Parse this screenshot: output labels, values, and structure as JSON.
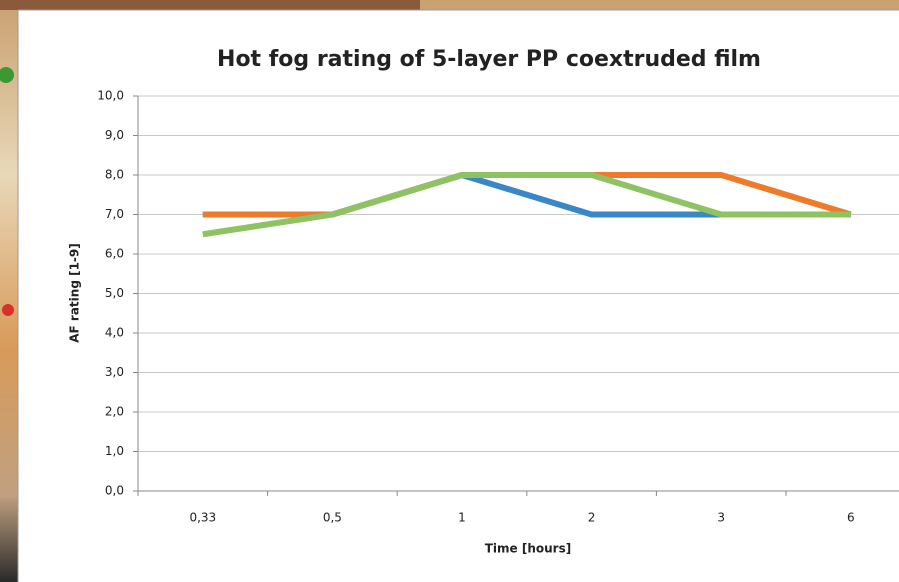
{
  "chart_data": {
    "type": "line",
    "title": "Hot fog rating of 5-layer PP coextruded film",
    "x_label": "Time [hours]",
    "y_label": "AF rating [1-9]",
    "categories": [
      "0,33",
      "0,5",
      "1",
      "2",
      "3",
      "6"
    ],
    "series": [
      {
        "color": "#3a87c8",
        "values": [
          7,
          7,
          8,
          7,
          7,
          7
        ]
      },
      {
        "color": "#ee7b2a",
        "values": [
          7,
          7,
          8,
          8,
          8,
          7
        ]
      },
      {
        "color": "#8dc363",
        "values": [
          6.5,
          7,
          8,
          8,
          7,
          7
        ]
      }
    ],
    "ylim": [
      0,
      10
    ],
    "yticks": [
      {
        "value": 0,
        "label": "0,0"
      },
      {
        "value": 1,
        "label": "1,0"
      },
      {
        "value": 2,
        "label": "2,0"
      },
      {
        "value": 3,
        "label": "3,0"
      },
      {
        "value": 4,
        "label": "4,0"
      },
      {
        "value": 5,
        "label": "5,0"
      },
      {
        "value": 6,
        "label": "6,0"
      },
      {
        "value": 7,
        "label": "7,0"
      },
      {
        "value": 8,
        "label": "8,0"
      },
      {
        "value": 9,
        "label": "9,0"
      },
      {
        "value": 10,
        "label": "10,0"
      }
    ],
    "grid": true
  }
}
